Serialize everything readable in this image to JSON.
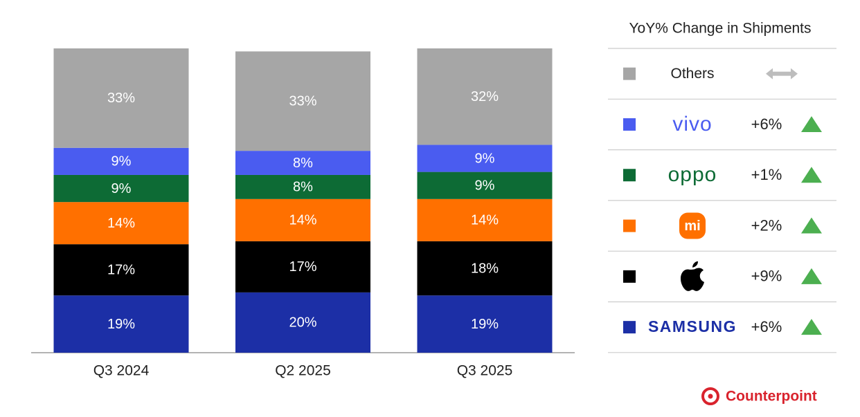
{
  "chart_data": {
    "type": "stacked_bar",
    "categories": [
      "Q3 2024",
      "Q2 2025",
      "Q3 2025"
    ],
    "ylim": [
      0,
      101
    ],
    "legend_title": "YoY% Change in Shipments",
    "source": "Counterpoint",
    "series": [
      {
        "name": "SAMSUNG",
        "color": "#1c2fa6",
        "values": [
          19,
          20,
          19
        ],
        "value_labels": [
          "19%",
          "20%",
          "19%"
        ],
        "yoy": 6,
        "yoy_label": "+6%"
      },
      {
        "color": "#000000",
        "values": [
          17,
          17,
          18
        ],
        "value_labels": [
          "17%",
          "17%",
          "18%"
        ],
        "yoy": 9,
        "yoy_label": "+9%"
      },
      {
        "name": "mi",
        "color": "#ff7000",
        "values": [
          14,
          14,
          14
        ],
        "value_labels": [
          "14%",
          "14%",
          "14%"
        ],
        "yoy": 2,
        "yoy_label": "+2%"
      },
      {
        "name": "oppo",
        "color": "#0d6b35",
        "values": [
          9,
          8,
          9
        ],
        "value_labels": [
          "9%",
          "8%",
          "9%"
        ],
        "yoy": 1,
        "yoy_label": "+1%"
      },
      {
        "name": "vivo",
        "color": "#4a5cf0",
        "values": [
          9,
          8,
          9
        ],
        "value_labels": [
          "9%",
          "8%",
          "9%"
        ],
        "yoy": 6,
        "yoy_label": "+6%"
      },
      {
        "name": "Others",
        "color": "#a6a6a6",
        "values": [
          33,
          33,
          32
        ],
        "value_labels": [
          "33%",
          "33%",
          "32%"
        ]
      }
    ]
  }
}
